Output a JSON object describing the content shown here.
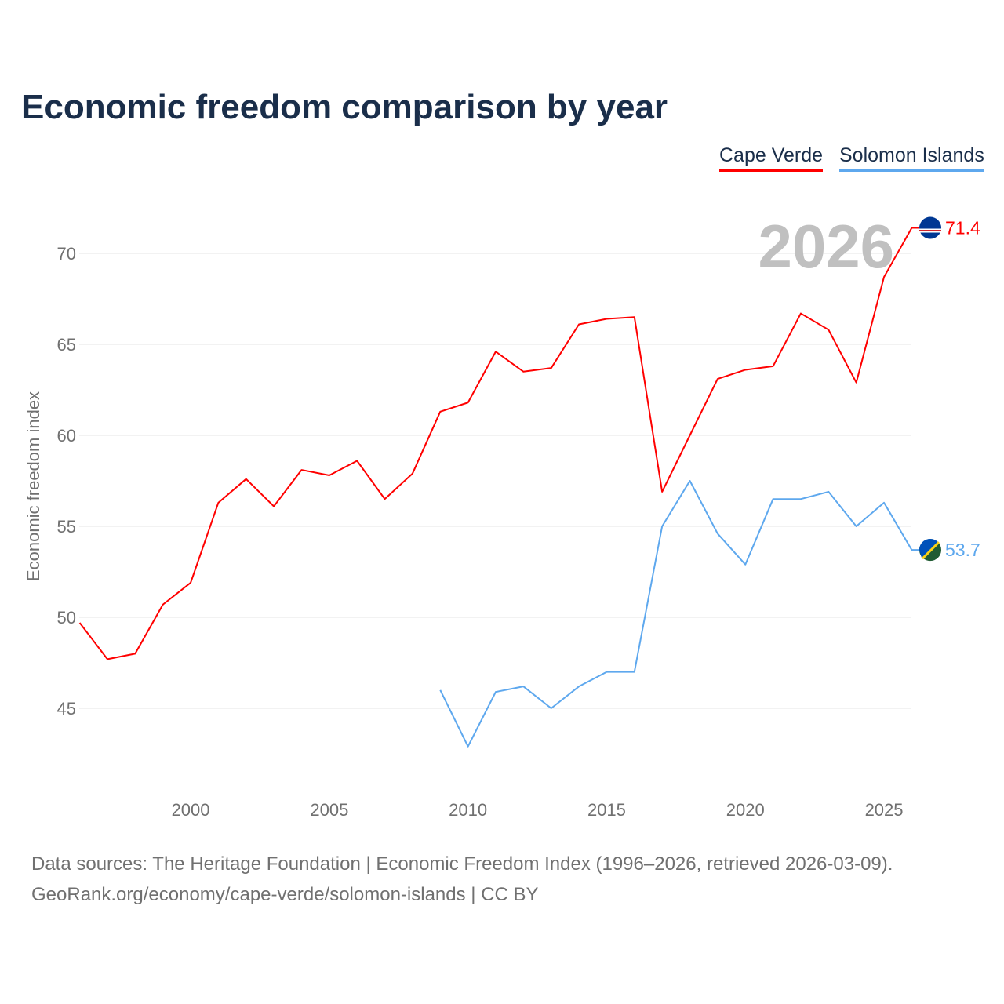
{
  "title": "Economic freedom comparison by year",
  "footer": {
    "line1": "Data sources: The Heritage Foundation | Economic Freedom Index (1996–2026, retrieved 2026-03-09).",
    "line2": "GeoRank.org/economy/cape-verde/solomon-islands | CC BY"
  },
  "chart_data": {
    "type": "line",
    "title": "Economic freedom comparison by year",
    "xlabel": "",
    "ylabel": "Economic freedom index",
    "xlim": [
      1996,
      2026
    ],
    "ylim": [
      41,
      73
    ],
    "yticks": [
      45,
      50,
      55,
      60,
      65,
      70
    ],
    "xticks": [
      2000,
      2005,
      2010,
      2015,
      2020,
      2025
    ],
    "grid": true,
    "legend_position": "top-right",
    "year_label": "2026",
    "series": [
      {
        "name": "Cape Verde",
        "color": "#ff0000",
        "end_label": "71.4",
        "x": [
          1996,
          1997,
          1998,
          1999,
          2000,
          2001,
          2002,
          2003,
          2004,
          2005,
          2006,
          2007,
          2008,
          2009,
          2010,
          2011,
          2012,
          2013,
          2014,
          2015,
          2016,
          2017,
          2018,
          2019,
          2020,
          2021,
          2022,
          2023,
          2024,
          2025,
          2026
        ],
        "values": [
          49.7,
          47.7,
          48.0,
          50.7,
          51.9,
          56.3,
          57.6,
          56.1,
          58.1,
          57.8,
          58.6,
          56.5,
          57.9,
          61.3,
          61.8,
          64.6,
          63.5,
          63.7,
          66.1,
          66.4,
          66.5,
          56.9,
          60.0,
          63.1,
          63.6,
          63.8,
          66.7,
          65.8,
          62.9,
          68.7,
          71.4
        ]
      },
      {
        "name": "Solomon Islands",
        "color": "#5ea8ee",
        "end_label": "53.7",
        "x": [
          2009,
          2010,
          2011,
          2012,
          2013,
          2014,
          2015,
          2016,
          2017,
          2018,
          2019,
          2020,
          2021,
          2022,
          2023,
          2024,
          2025,
          2026
        ],
        "values": [
          46.0,
          42.9,
          45.9,
          46.2,
          45.0,
          46.2,
          47.0,
          47.0,
          55.0,
          57.5,
          54.6,
          52.9,
          56.5,
          56.5,
          56.9,
          55.0,
          56.3,
          53.7
        ]
      }
    ]
  }
}
